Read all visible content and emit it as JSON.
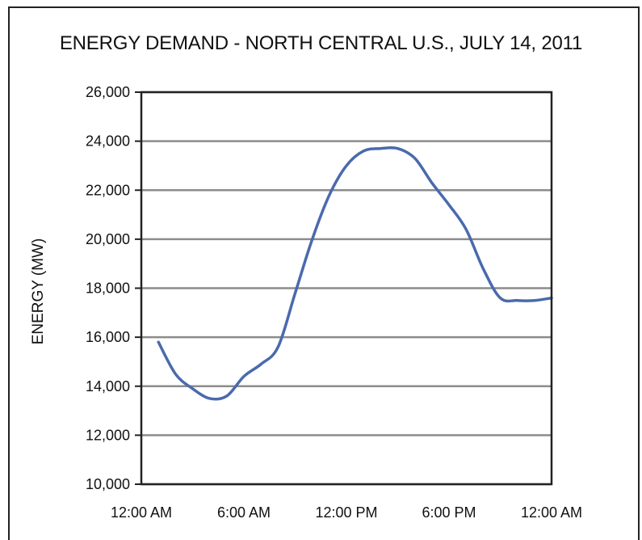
{
  "chart_data": {
    "type": "line",
    "title": "ENERGY DEMAND - NORTH CENTRAL U.S., JULY 14, 2011",
    "ylabel": "ENERGY (MW)",
    "xlabel": "",
    "ylim": [
      10000,
      26000
    ],
    "xlim": [
      0,
      24
    ],
    "grid": true,
    "y_ticks": [
      10000,
      12000,
      14000,
      16000,
      18000,
      20000,
      22000,
      24000,
      26000
    ],
    "y_tick_labels": [
      "10,000",
      "12,000",
      "14,000",
      "16,000",
      "18,000",
      "20,000",
      "22,000",
      "24,000",
      "26,000"
    ],
    "x_ticks": [
      0,
      6,
      12,
      18,
      24
    ],
    "x_tick_labels": [
      "12:00 AM",
      "6:00 AM",
      "12:00 PM",
      "6:00 PM",
      "12:00 AM"
    ],
    "line_color": "#4a6aad",
    "series": [
      {
        "x": [
          1,
          2,
          3,
          4,
          5,
          6,
          7,
          8,
          9,
          10,
          11,
          12,
          13,
          14,
          15,
          16,
          17,
          18,
          19,
          20,
          21,
          22,
          23,
          24
        ],
        "values": [
          15800,
          14500,
          13900,
          13500,
          13600,
          14400,
          14900,
          15600,
          17800,
          20000,
          21800,
          23000,
          23600,
          23700,
          23700,
          23300,
          22300,
          21400,
          20400,
          18800,
          17600,
          17500,
          17500,
          17600
        ]
      }
    ]
  }
}
